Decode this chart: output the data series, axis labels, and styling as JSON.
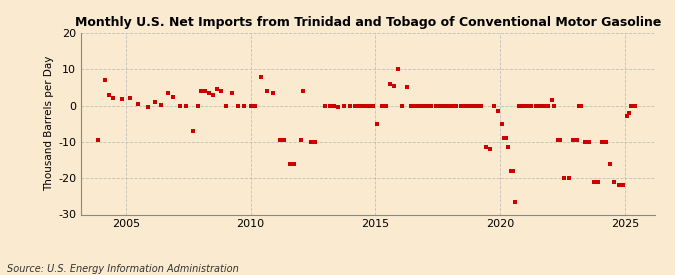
{
  "title": "Monthly U.S. Net Imports from Trinidad and Tobago of Conventional Motor Gasoline",
  "ylabel": "Thousand Barrels per Day",
  "source": "Source: U.S. Energy Information Administration",
  "ylim": [
    -30,
    20
  ],
  "yticks": [
    -30,
    -20,
    -10,
    0,
    10,
    20
  ],
  "xticks": [
    2005,
    2010,
    2015,
    2020,
    2025
  ],
  "xlim": [
    2003.2,
    2026.2
  ],
  "background_color": "#faebd0",
  "dot_color": "#cc0000",
  "grid_color": "#bbbbbb",
  "title_fontsize": 9.0,
  "label_fontsize": 7.5,
  "tick_fontsize": 8.0,
  "source_fontsize": 7.0,
  "data_points": [
    [
      2003.9,
      -9.5
    ],
    [
      2004.17,
      7.0
    ],
    [
      2004.33,
      3.0
    ],
    [
      2004.5,
      2.0
    ],
    [
      2004.83,
      1.8
    ],
    [
      2005.17,
      2.0
    ],
    [
      2005.5,
      0.5
    ],
    [
      2005.9,
      -0.5
    ],
    [
      2006.17,
      1.0
    ],
    [
      2006.42,
      0.3
    ],
    [
      2006.67,
      3.5
    ],
    [
      2006.9,
      2.5
    ],
    [
      2007.17,
      0.0
    ],
    [
      2007.42,
      0.0
    ],
    [
      2007.67,
      -7.0
    ],
    [
      2007.9,
      0.0
    ],
    [
      2008.0,
      4.0
    ],
    [
      2008.17,
      4.0
    ],
    [
      2008.33,
      3.5
    ],
    [
      2008.5,
      3.0
    ],
    [
      2008.67,
      4.5
    ],
    [
      2008.83,
      4.0
    ],
    [
      2009.0,
      0.0
    ],
    [
      2009.25,
      3.5
    ],
    [
      2009.5,
      0.0
    ],
    [
      2009.75,
      0.0
    ],
    [
      2010.0,
      0.0
    ],
    [
      2010.17,
      0.0
    ],
    [
      2010.42,
      8.0
    ],
    [
      2010.67,
      4.0
    ],
    [
      2010.9,
      3.5
    ],
    [
      2011.17,
      -9.5
    ],
    [
      2011.33,
      -9.5
    ],
    [
      2011.58,
      -16.0
    ],
    [
      2011.75,
      -16.0
    ],
    [
      2012.0,
      -9.5
    ],
    [
      2012.08,
      4.0
    ],
    [
      2012.42,
      -10.0
    ],
    [
      2012.58,
      -10.0
    ],
    [
      2013.0,
      0.0
    ],
    [
      2013.17,
      0.0
    ],
    [
      2013.33,
      0.0
    ],
    [
      2013.5,
      -0.5
    ],
    [
      2013.75,
      0.0
    ],
    [
      2014.0,
      0.0
    ],
    [
      2014.17,
      0.0
    ],
    [
      2014.25,
      0.0
    ],
    [
      2014.42,
      0.0
    ],
    [
      2014.58,
      0.0
    ],
    [
      2014.75,
      0.0
    ],
    [
      2014.92,
      0.0
    ],
    [
      2015.08,
      -5.0
    ],
    [
      2015.25,
      0.0
    ],
    [
      2015.42,
      0.0
    ],
    [
      2015.58,
      6.0
    ],
    [
      2015.75,
      5.5
    ],
    [
      2015.92,
      10.0
    ],
    [
      2016.08,
      0.0
    ],
    [
      2016.25,
      5.0
    ],
    [
      2016.42,
      0.0
    ],
    [
      2016.58,
      0.0
    ],
    [
      2016.75,
      0.0
    ],
    [
      2016.92,
      0.0
    ],
    [
      2017.08,
      0.0
    ],
    [
      2017.25,
      0.0
    ],
    [
      2017.42,
      0.0
    ],
    [
      2017.58,
      0.0
    ],
    [
      2017.75,
      0.0
    ],
    [
      2017.92,
      0.0
    ],
    [
      2018.08,
      0.0
    ],
    [
      2018.25,
      0.0
    ],
    [
      2018.42,
      0.0
    ],
    [
      2018.58,
      0.0
    ],
    [
      2018.75,
      0.0
    ],
    [
      2018.92,
      0.0
    ],
    [
      2019.08,
      0.0
    ],
    [
      2019.25,
      0.0
    ],
    [
      2019.42,
      -11.5
    ],
    [
      2019.58,
      -12.0
    ],
    [
      2019.75,
      0.0
    ],
    [
      2019.92,
      -1.5
    ],
    [
      2020.08,
      -5.0
    ],
    [
      2020.17,
      -9.0
    ],
    [
      2020.25,
      -9.0
    ],
    [
      2020.33,
      -11.5
    ],
    [
      2020.42,
      -18.0
    ],
    [
      2020.5,
      -18.0
    ],
    [
      2020.58,
      -26.5
    ],
    [
      2020.75,
      0.0
    ],
    [
      2020.92,
      0.0
    ],
    [
      2021.08,
      0.0
    ],
    [
      2021.25,
      0.0
    ],
    [
      2021.42,
      0.0
    ],
    [
      2021.58,
      0.0
    ],
    [
      2021.75,
      0.0
    ],
    [
      2021.92,
      0.0
    ],
    [
      2022.08,
      1.5
    ],
    [
      2022.17,
      0.0
    ],
    [
      2022.33,
      -9.5
    ],
    [
      2022.42,
      -9.5
    ],
    [
      2022.58,
      -20.0
    ],
    [
      2022.75,
      -20.0
    ],
    [
      2022.92,
      -9.5
    ],
    [
      2023.08,
      -9.5
    ],
    [
      2023.17,
      0.0
    ],
    [
      2023.25,
      0.0
    ],
    [
      2023.42,
      -10.0
    ],
    [
      2023.58,
      -10.0
    ],
    [
      2023.75,
      -21.0
    ],
    [
      2023.92,
      -21.0
    ],
    [
      2024.08,
      -10.0
    ],
    [
      2024.17,
      -10.0
    ],
    [
      2024.25,
      -10.0
    ],
    [
      2024.42,
      -16.0
    ],
    [
      2024.58,
      -21.0
    ],
    [
      2024.75,
      -22.0
    ],
    [
      2024.92,
      -22.0
    ],
    [
      2025.08,
      -3.0
    ],
    [
      2025.17,
      -2.0
    ],
    [
      2025.25,
      0.0
    ],
    [
      2025.42,
      0.0
    ]
  ]
}
